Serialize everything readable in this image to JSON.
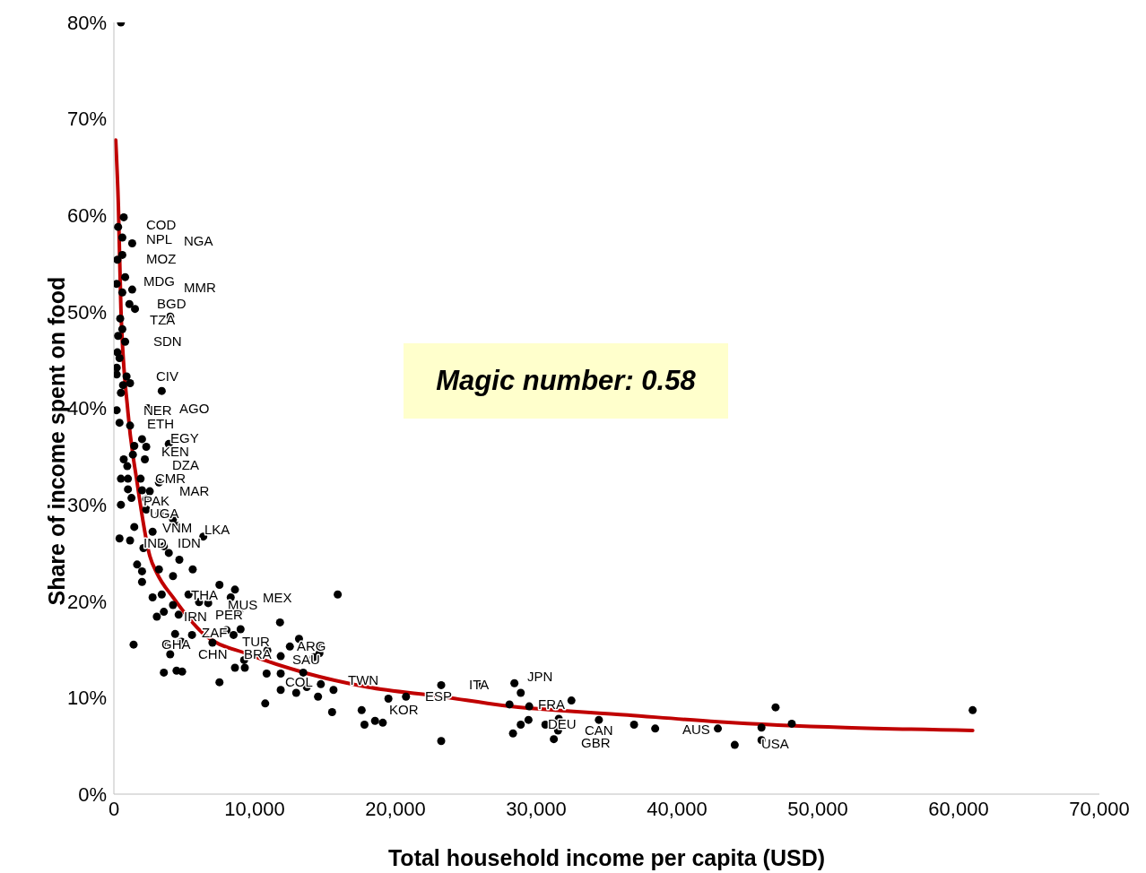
{
  "chart_data": {
    "type": "scatter",
    "xlabel": "Total household income per capita (USD)",
    "ylabel": "Share of income spent on food",
    "xlim": [
      0,
      70000
    ],
    "xticks": [
      0,
      {
        "value": 10000,
        "label": "10,000"
      },
      {
        "value": 20000,
        "label": "20,000"
      },
      {
        "value": 30000,
        "label": "30,000"
      },
      {
        "value": 40000,
        "label": "40,000"
      },
      {
        "value": 50000,
        "label": "50,000"
      },
      {
        "value": 60000,
        "label": "60,000"
      },
      {
        "value": 70000,
        "label": "70,000"
      }
    ],
    "ylim": [
      0,
      80
    ],
    "yticks": [
      {
        "value": 0,
        "label": "0%"
      },
      {
        "value": 10,
        "label": "10%"
      },
      {
        "value": 20,
        "label": "20%"
      },
      {
        "value": 30,
        "label": "30%"
      },
      {
        "value": 40,
        "label": "40%"
      },
      {
        "value": 50,
        "label": "50%"
      },
      {
        "value": 60,
        "label": "60%"
      },
      {
        "value": 70,
        "label": "70%"
      },
      {
        "value": 80,
        "label": "80%"
      }
    ],
    "grid": false,
    "legend": false,
    "series": [
      {
        "color": "#000000",
        "marker": "circle",
        "x": [
          500,
          700,
          300,
          600,
          1300,
          600,
          250,
          800,
          200,
          1300,
          600,
          1100,
          1500,
          4000,
          450,
          600,
          300,
          800,
          250,
          400,
          200,
          900,
          200,
          1150,
          650,
          3400,
          500,
          200,
          2400,
          400,
          1150,
          2000,
          3900,
          1450,
          2300,
          1350,
          700,
          2200,
          950,
          500,
          1000,
          1900,
          3200,
          1000,
          2000,
          2550,
          1250,
          2300,
          500,
          2300,
          3250,
          4200,
          1450,
          2750,
          4500,
          400,
          1150,
          6350,
          2100,
          3550,
          3900,
          4650,
          1650,
          5600,
          2000,
          3200,
          4200,
          2000,
          7500,
          8600,
          2750,
          3400,
          5300,
          6050,
          6700,
          8300,
          8900,
          15900,
          3050,
          3550,
          4200,
          4600,
          11800,
          8000,
          9000,
          8500,
          4350,
          5550,
          3700,
          4800,
          7000,
          1400,
          13150,
          12500,
          14650,
          14600,
          14200,
          11850,
          4000,
          10900,
          9250,
          8600,
          9300,
          10850,
          11850,
          3550,
          4450,
          4850,
          7500,
          13450,
          11850,
          12950,
          13700,
          14700,
          15600,
          14500,
          10750,
          15500,
          17600,
          17800,
          18550,
          19100,
          19500,
          20750,
          23250,
          23250,
          25950,
          28450,
          28900,
          28100,
          29500,
          32500,
          28350,
          28900,
          29450,
          30650,
          31600,
          31550,
          31250,
          34450,
          36950,
          38450,
          42900,
          44100,
          46000,
          46000,
          47000,
          48150,
          61000
        ],
        "values": [
          80.0,
          59.8,
          58.8,
          57.7,
          57.1,
          55.9,
          55.4,
          53.6,
          52.9,
          52.3,
          52.0,
          50.8,
          50.3,
          49.5,
          49.3,
          48.2,
          47.5,
          46.9,
          45.8,
          45.2,
          44.2,
          43.3,
          43.5,
          42.6,
          42.4,
          41.8,
          41.6,
          39.8,
          40.0,
          38.5,
          38.2,
          36.8,
          36.3,
          36.1,
          36.0,
          35.2,
          34.7,
          34.7,
          34.0,
          32.7,
          32.7,
          32.7,
          32.3,
          31.6,
          31.5,
          31.4,
          30.7,
          30.6,
          30.0,
          29.5,
          29.1,
          28.5,
          27.7,
          27.2,
          27.8,
          26.5,
          26.3,
          26.7,
          25.5,
          25.7,
          25.0,
          24.3,
          23.8,
          23.3,
          23.1,
          23.3,
          22.6,
          22.0,
          21.7,
          21.2,
          20.4,
          20.7,
          20.7,
          19.9,
          19.8,
          20.4,
          18.9,
          20.7,
          18.4,
          18.9,
          19.6,
          18.6,
          17.8,
          17.0,
          17.1,
          16.5,
          16.6,
          16.5,
          15.6,
          15.8,
          15.7,
          15.5,
          16.1,
          15.3,
          15.3,
          14.6,
          14.2,
          14.3,
          14.5,
          14.9,
          13.9,
          13.1,
          13.1,
          12.5,
          12.5,
          12.6,
          12.8,
          12.7,
          11.6,
          12.6,
          10.8,
          10.5,
          11.1,
          11.4,
          10.8,
          10.1,
          9.4,
          8.5,
          8.7,
          7.2,
          7.6,
          7.4,
          9.9,
          10.1,
          11.3,
          5.5,
          11.2,
          11.5,
          10.5,
          9.3,
          9.1,
          9.7,
          6.3,
          7.2,
          7.7,
          7.2,
          7.8,
          6.6,
          5.7,
          7.7,
          7.2,
          6.8,
          6.8,
          5.1,
          6.9,
          5.6,
          9.0,
          7.3,
          8.7
        ]
      },
      {
        "type": "line",
        "color": "#c00000",
        "line_style": "solid",
        "x": [
          130,
          320,
          500,
          1000,
          1660,
          2550,
          3060,
          4200,
          6370,
          9550,
          13760,
          18000,
          23300,
          27600,
          36500,
          42900,
          61000
        ],
        "values": [
          67.8,
          61.0,
          50.3,
          39.6,
          32.2,
          24.7,
          22.9,
          20.4,
          16.6,
          14.5,
          12.5,
          11.1,
          10.1,
          9.2,
          8.2,
          7.5,
          6.6
        ]
      }
    ],
    "annotations": [
      "Magic number: 0.58",
      "COD",
      "NPL",
      "NGA",
      "MOZ",
      "MDG",
      "MMR",
      "BGD",
      "TZA",
      "SDN",
      "CIV",
      "NER",
      "AGO",
      "ETH",
      "EGY",
      "KEN",
      "DZA",
      "CMR",
      "MAR",
      "PAK",
      "UGA",
      "VNM",
      "IND",
      "IDN",
      "LKA",
      "THA",
      "MEX",
      "MUS",
      "IRN",
      "PER",
      "ZAF",
      "TUR",
      "BRA",
      "GHA",
      "CHN",
      "ARG",
      "SAU",
      "COL",
      "TWN",
      "KOR",
      "ESP",
      "ITA",
      "JPN",
      "FRA",
      "DEU",
      "CAN",
      "GBR",
      "AUS",
      "USA"
    ]
  }
}
